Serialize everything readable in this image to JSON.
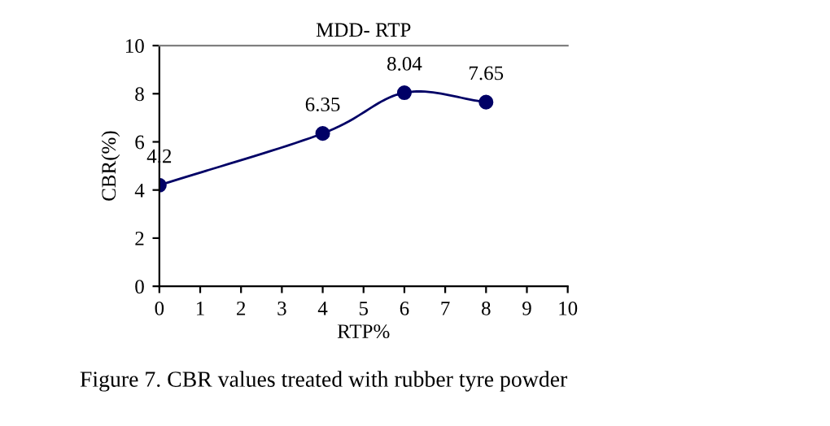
{
  "chart_data": {
    "type": "line",
    "title": "MDD- RTP",
    "xlabel": "RTP%",
    "ylabel": "CBR(%)",
    "x": [
      0,
      4,
      6,
      8
    ],
    "series": [
      {
        "color": "#000066",
        "values": [
          4.2,
          6.35,
          8.04,
          7.65
        ]
      }
    ],
    "xlim": [
      0,
      10
    ],
    "xticks": [
      0,
      1,
      2,
      3,
      4,
      5,
      6,
      7,
      8,
      9,
      10
    ],
    "ylim": [
      0,
      10
    ],
    "yticks": [
      0,
      2,
      4,
      6,
      8,
      10
    ],
    "marker": "circle",
    "line_style": "solid",
    "grid": false,
    "legend": false,
    "data_labels": true,
    "annotations": [
      "Figure 7. CBR values treated with rubber tyre powder"
    ]
  }
}
